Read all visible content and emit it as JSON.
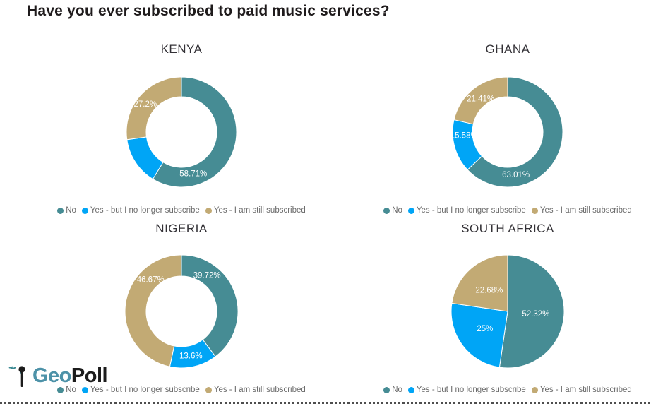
{
  "page_title": "Have you ever subscribed to paid music services?",
  "legend_labels": [
    "No",
    "Yes - but I no longer subscribe",
    "Yes - I am still subscribed"
  ],
  "series_colors": [
    "#468C94",
    "#00A5F6",
    "#C2AA74"
  ],
  "logo": {
    "text_geo": "Geo",
    "text_poll": "Poll"
  },
  "chart_data": [
    {
      "type": "donut",
      "title": "KENYA",
      "categories": [
        "No",
        "Yes - but I no longer subscribe",
        "Yes - I am still subscribed"
      ],
      "values": [
        58.71,
        14.09,
        27.2
      ],
      "data_labels": [
        "58.71%",
        null,
        "27.2%"
      ],
      "legend_position": "bottom",
      "units": "percent"
    },
    {
      "type": "donut",
      "title": "GHANA",
      "categories": [
        "No",
        "Yes - but I no longer subscribe",
        "Yes - I am still subscribed"
      ],
      "values": [
        63.01,
        15.58,
        21.41
      ],
      "data_labels": [
        "63.01%",
        "15.58%",
        "21.41%"
      ],
      "legend_position": "bottom",
      "units": "percent"
    },
    {
      "type": "donut",
      "title": "NIGERIA",
      "categories": [
        "No",
        "Yes - but I no longer subscribe",
        "Yes - I am still subscribed"
      ],
      "values": [
        39.72,
        13.6,
        46.67
      ],
      "data_labels": [
        "39.72%",
        "13.6%",
        "46.67%"
      ],
      "legend_position": "bottom",
      "units": "percent"
    },
    {
      "type": "pie",
      "title": "SOUTH AFRICA",
      "categories": [
        "No",
        "Yes - but I no longer subscribe",
        "Yes - I am still subscribed"
      ],
      "values": [
        52.32,
        25,
        22.68
      ],
      "data_labels": [
        "52.32%",
        "25%",
        "22.68%"
      ],
      "legend_position": "bottom",
      "units": "percent"
    }
  ]
}
